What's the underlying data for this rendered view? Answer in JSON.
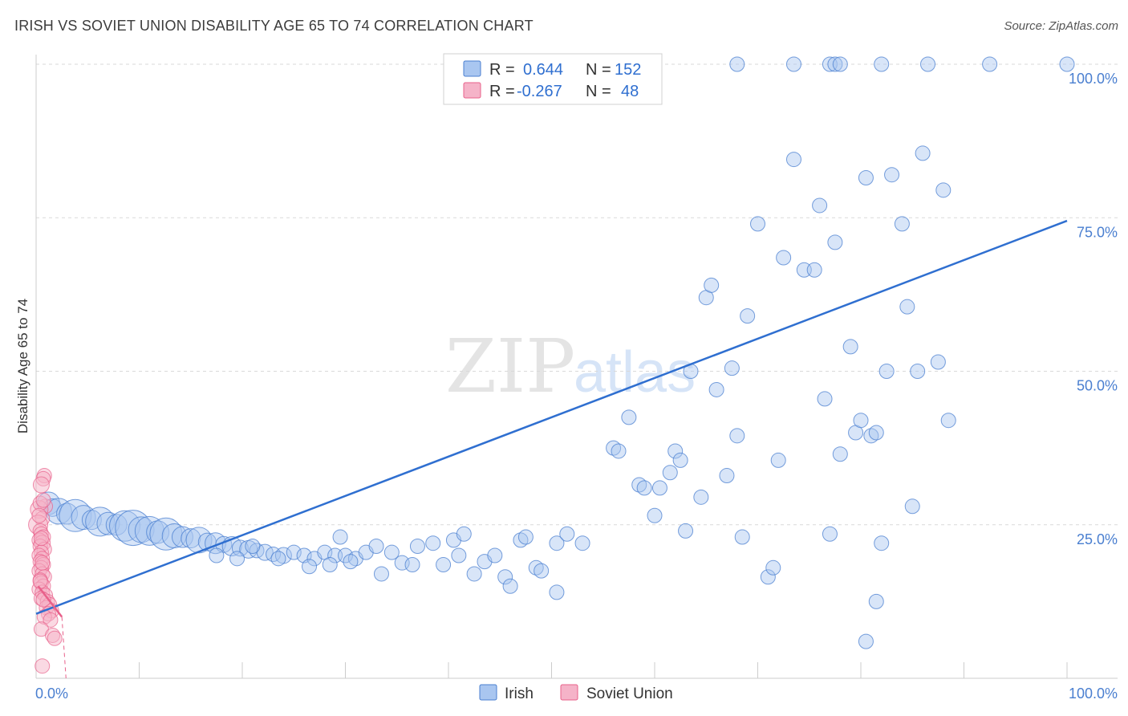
{
  "title": "IRISH VS SOVIET UNION DISABILITY AGE 65 TO 74 CORRELATION CHART",
  "source": "Source: ZipAtlas.com",
  "watermark": {
    "zip": "ZIP",
    "atlas": "atlas"
  },
  "colors": {
    "irish": "#4a7fd0",
    "irish_fill": "#a9c6f0",
    "soviet": "#e8608a",
    "soviet_fill": "#f5b3c8",
    "grid": "#d9d9d9"
  },
  "legend": [
    {
      "r_label": "R =",
      "r_value": "0.644",
      "n_label": "N =",
      "n_value": "152"
    },
    {
      "r_label": "R =",
      "r_value": "-0.267",
      "n_label": "N =",
      "n_value": "48"
    }
  ],
  "chart_data": {
    "type": "scatter",
    "xlabel": "",
    "ylabel": "Disability Age 65 to 74",
    "xlim": [
      0,
      100
    ],
    "ylim": [
      0,
      100
    ],
    "x_tick_labels": [
      "0.0%",
      "100.0%"
    ],
    "y_ticks": [
      25,
      50,
      75,
      100
    ],
    "y_tick_labels": [
      "25.0%",
      "50.0%",
      "75.0%",
      "100.0%"
    ],
    "grid": true,
    "legend_position": "top-center",
    "series": [
      {
        "name": "Irish",
        "trend": {
          "x": [
            0,
            100
          ],
          "y": [
            10.5,
            74.5
          ]
        },
        "points": [
          [
            1.2,
            28.5,
            14
          ],
          [
            1.6,
            27.8,
            11
          ],
          [
            2.2,
            27.2,
            16
          ],
          [
            3.0,
            26.8,
            13
          ],
          [
            3.8,
            26.5,
            20
          ],
          [
            4.6,
            26.2,
            15
          ],
          [
            5.4,
            25.8,
            12
          ],
          [
            6.2,
            25.5,
            18
          ],
          [
            7.0,
            25.2,
            14
          ],
          [
            7.8,
            25.0,
            13
          ],
          [
            8.6,
            24.8,
            19
          ],
          [
            9.4,
            24.5,
            22
          ],
          [
            10.2,
            24.2,
            16
          ],
          [
            11.0,
            24.0,
            18
          ],
          [
            11.8,
            23.8,
            14
          ],
          [
            12.6,
            23.5,
            20
          ],
          [
            13.4,
            23.2,
            15
          ],
          [
            14.2,
            23.0,
            13
          ],
          [
            15.0,
            22.8,
            12
          ],
          [
            15.8,
            22.5,
            16
          ],
          [
            16.6,
            22.2,
            11
          ],
          [
            17.4,
            22.0,
            13
          ],
          [
            18.2,
            21.8,
            10
          ],
          [
            19.0,
            21.5,
            12
          ],
          [
            19.8,
            21.2,
            10
          ],
          [
            20.6,
            21.0,
            11
          ],
          [
            21.4,
            20.8,
            9
          ],
          [
            22.2,
            20.5,
            10
          ],
          [
            23.0,
            20.2,
            9
          ],
          [
            24.0,
            20.0,
            10
          ],
          [
            25.0,
            20.5,
            9
          ],
          [
            26.0,
            20.0,
            9
          ],
          [
            27.0,
            19.5,
            9
          ],
          [
            28.0,
            20.5,
            9
          ],
          [
            29.0,
            20.0,
            9
          ],
          [
            30.0,
            20.0,
            9
          ],
          [
            31.0,
            19.5,
            9
          ],
          [
            32.0,
            20.5,
            9
          ],
          [
            17.5,
            20.0,
            9
          ],
          [
            19.5,
            19.5,
            9
          ],
          [
            21.0,
            21.5,
            9
          ],
          [
            23.5,
            19.5,
            9
          ],
          [
            26.5,
            18.2,
            9
          ],
          [
            28.5,
            18.5,
            9
          ],
          [
            30.5,
            19.0,
            9
          ],
          [
            33.5,
            17.0,
            9
          ],
          [
            34.5,
            20.5,
            9
          ],
          [
            35.5,
            18.8,
            9
          ],
          [
            36.5,
            18.5,
            9
          ],
          [
            37.0,
            21.5,
            9
          ],
          [
            38.5,
            22.0,
            9
          ],
          [
            39.5,
            18.5,
            9
          ],
          [
            40.5,
            22.5,
            9
          ],
          [
            41.0,
            20.0,
            9
          ],
          [
            41.5,
            23.5,
            9
          ],
          [
            42.5,
            17.0,
            9
          ],
          [
            43.5,
            19.0,
            9
          ],
          [
            44.5,
            20.0,
            9
          ],
          [
            45.5,
            16.5,
            9
          ],
          [
            46.0,
            15.0,
            9
          ],
          [
            47.0,
            22.5,
            9
          ],
          [
            47.5,
            23.0,
            9
          ],
          [
            48.5,
            18.0,
            9
          ],
          [
            49.0,
            17.5,
            9
          ],
          [
            50.5,
            22.0,
            9
          ],
          [
            50.5,
            14.0,
            9
          ],
          [
            51.5,
            23.5,
            9
          ],
          [
            53.0,
            22.0,
            9
          ],
          [
            29.5,
            23.0,
            9
          ],
          [
            33.0,
            21.5,
            9
          ],
          [
            56.0,
            37.5,
            9
          ],
          [
            56.5,
            37.0,
            9
          ],
          [
            57.5,
            42.5,
            9
          ],
          [
            58.5,
            31.5,
            9
          ],
          [
            59.0,
            31.0,
            9
          ],
          [
            60.0,
            26.5,
            9
          ],
          [
            60.5,
            31.0,
            9
          ],
          [
            61.5,
            33.5,
            9
          ],
          [
            62.0,
            37.0,
            9
          ],
          [
            62.5,
            35.5,
            9
          ],
          [
            63.0,
            24.0,
            9
          ],
          [
            63.5,
            50.0,
            9
          ],
          [
            64.5,
            29.5,
            9
          ],
          [
            65.0,
            62.0,
            9
          ],
          [
            65.5,
            64.0,
            9
          ],
          [
            66.0,
            47.0,
            9
          ],
          [
            67.0,
            33.0,
            9
          ],
          [
            67.5,
            50.5,
            9
          ],
          [
            68.0,
            39.5,
            9
          ],
          [
            68.5,
            23.0,
            9
          ],
          [
            69.0,
            59.0,
            9
          ],
          [
            70.0,
            74.0,
            9
          ],
          [
            71.0,
            16.5,
            9
          ],
          [
            71.5,
            18.0,
            9
          ],
          [
            72.0,
            35.5,
            9
          ],
          [
            72.5,
            68.5,
            9
          ],
          [
            73.5,
            84.5,
            9
          ],
          [
            74.5,
            66.5,
            9
          ],
          [
            75.5,
            66.5,
            9
          ],
          [
            76.0,
            77.0,
            9
          ],
          [
            76.5,
            45.5,
            9
          ],
          [
            77.0,
            23.5,
            9
          ],
          [
            77.5,
            71.0,
            9
          ],
          [
            78.0,
            36.5,
            9
          ],
          [
            79.0,
            54.0,
            9
          ],
          [
            79.5,
            40.0,
            9
          ],
          [
            80.0,
            42.0,
            9
          ],
          [
            80.5,
            81.5,
            9
          ],
          [
            81.0,
            39.5,
            9
          ],
          [
            81.5,
            40.0,
            9
          ],
          [
            82.0,
            22.0,
            9
          ],
          [
            82.5,
            50.0,
            9
          ],
          [
            83.0,
            82.0,
            9
          ],
          [
            84.5,
            60.5,
            9
          ],
          [
            85.0,
            28.0,
            9
          ],
          [
            85.5,
            50.0,
            9
          ],
          [
            86.0,
            85.5,
            9
          ],
          [
            87.5,
            51.5,
            9
          ],
          [
            88.5,
            42.0,
            9
          ],
          [
            80.5,
            6.0,
            9
          ],
          [
            81.5,
            12.5,
            9
          ],
          [
            84.0,
            74.0,
            9
          ],
          [
            88.0,
            79.5,
            9
          ],
          [
            68.0,
            100.0,
            9
          ],
          [
            73.5,
            100.0,
            9
          ],
          [
            77.0,
            100.0,
            9
          ],
          [
            77.5,
            100.0,
            9
          ],
          [
            78.0,
            100.0,
            9
          ],
          [
            82.0,
            100.0,
            9
          ],
          [
            86.5,
            100.0,
            9
          ],
          [
            92.5,
            100.0,
            9
          ],
          [
            100.0,
            100.0,
            9
          ]
        ]
      },
      {
        "name": "Soviet Union",
        "trend": {
          "x": [
            0.2,
            2.5
          ],
          "y": [
            15.0,
            10.0
          ]
        },
        "points": [
          [
            0.8,
            33.0,
            9
          ],
          [
            0.7,
            32.5,
            9
          ],
          [
            0.5,
            31.5,
            10
          ],
          [
            0.9,
            28.0,
            9
          ],
          [
            0.3,
            27.5,
            11
          ],
          [
            0.6,
            26.0,
            9
          ],
          [
            0.2,
            25.0,
            12
          ],
          [
            0.4,
            24.0,
            9
          ],
          [
            0.5,
            23.5,
            9
          ],
          [
            0.7,
            23.0,
            9
          ],
          [
            0.3,
            22.5,
            9
          ],
          [
            0.6,
            22.0,
            10
          ],
          [
            0.4,
            21.5,
            9
          ],
          [
            0.8,
            21.0,
            9
          ],
          [
            0.5,
            20.5,
            9
          ],
          [
            0.3,
            20.0,
            9
          ],
          [
            0.6,
            19.5,
            9
          ],
          [
            0.4,
            19.0,
            9
          ],
          [
            0.7,
            18.5,
            9
          ],
          [
            0.5,
            18.0,
            9
          ],
          [
            0.3,
            17.5,
            9
          ],
          [
            0.6,
            17.0,
            9
          ],
          [
            0.8,
            16.5,
            9
          ],
          [
            0.4,
            16.0,
            9
          ],
          [
            0.5,
            15.5,
            9
          ],
          [
            0.7,
            15.0,
            9
          ],
          [
            0.3,
            14.5,
            9
          ],
          [
            0.6,
            14.0,
            9
          ],
          [
            0.9,
            13.5,
            9
          ],
          [
            0.5,
            13.0,
            9
          ],
          [
            1.1,
            12.5,
            9
          ],
          [
            1.3,
            12.0,
            9
          ],
          [
            1.0,
            11.5,
            9
          ],
          [
            1.5,
            11.0,
            9
          ],
          [
            1.2,
            10.5,
            9
          ],
          [
            0.8,
            10.0,
            9
          ],
          [
            1.4,
            9.5,
            9
          ],
          [
            0.5,
            8.0,
            9
          ],
          [
            1.6,
            7.0,
            9
          ],
          [
            1.8,
            6.5,
            9
          ],
          [
            0.6,
            2.0,
            9
          ],
          [
            0.4,
            28.5,
            9
          ],
          [
            0.7,
            29.0,
            9
          ],
          [
            0.3,
            26.5,
            9
          ],
          [
            0.5,
            22.8,
            9
          ],
          [
            0.6,
            18.8,
            9
          ],
          [
            0.4,
            15.8,
            9
          ],
          [
            0.7,
            12.8,
            9
          ]
        ]
      }
    ]
  },
  "bottom_legend": [
    {
      "label": "Irish"
    },
    {
      "label": "Soviet Union"
    }
  ]
}
